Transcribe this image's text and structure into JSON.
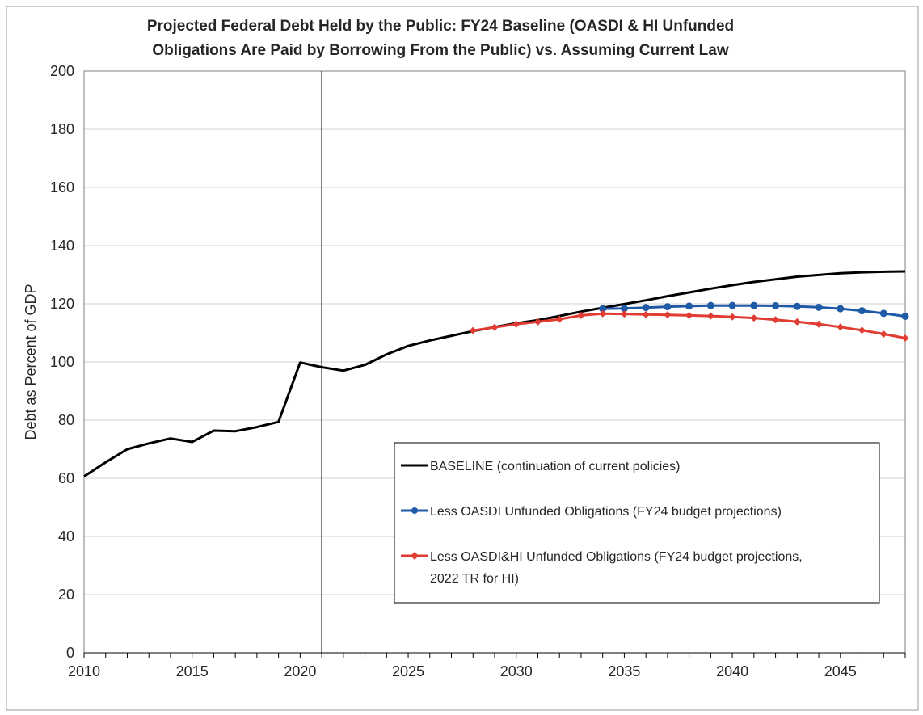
{
  "chart_data": {
    "type": "line",
    "title_lines": [
      "Projected Federal Debt Held by the Public: FY24 Baseline (OASDI & HI Unfunded",
      "Obligations Are Paid by Borrowing From the Public) vs. Assuming Current Law"
    ],
    "ylabel": "Debt as Percent of GDP",
    "xlabel": "",
    "xlim": [
      2010,
      2048
    ],
    "ylim": [
      0,
      200
    ],
    "x_ticks": [
      2010,
      2015,
      2020,
      2025,
      2030,
      2035,
      2040,
      2045
    ],
    "y_ticks": [
      0,
      20,
      40,
      60,
      80,
      100,
      120,
      140,
      160,
      180,
      200
    ],
    "horizontal_grid": true,
    "vertical_marker_x": 2021,
    "legend_position": "lower-right inside plot",
    "series": [
      {
        "name": "BASELINE (continuation of current policies)",
        "color": "#000000",
        "marker": "none",
        "x": [
          2010,
          2011,
          2012,
          2013,
          2014,
          2015,
          2016,
          2017,
          2018,
          2019,
          2020,
          2021,
          2022,
          2023,
          2024,
          2025,
          2026,
          2027,
          2028,
          2029,
          2030,
          2031,
          2032,
          2033,
          2034,
          2035,
          2036,
          2037,
          2038,
          2039,
          2040,
          2041,
          2042,
          2043,
          2044,
          2045,
          2046,
          2047,
          2048
        ],
        "y": [
          60.6,
          65.5,
          70.0,
          72.0,
          73.7,
          72.5,
          76.4,
          76.2,
          77.6,
          79.4,
          99.8,
          98.2,
          97.0,
          99.0,
          102.6,
          105.5,
          107.4,
          109.0,
          110.6,
          112.0,
          113.3,
          114.4,
          115.8,
          117.3,
          118.6,
          119.9,
          121.2,
          122.6,
          123.9,
          125.2,
          126.4,
          127.5,
          128.4,
          129.3,
          129.9,
          130.5,
          130.8,
          131.0,
          131.1
        ]
      },
      {
        "name": "Less OASDI Unfunded Obligations (FY24 budget projections)",
        "color": "#1F5AA6",
        "marker": "circle",
        "x": [
          2034,
          2035,
          2036,
          2037,
          2038,
          2039,
          2040,
          2041,
          2042,
          2043,
          2044,
          2045,
          2046,
          2047,
          2048
        ],
        "y": [
          118.3,
          118.4,
          118.7,
          119.0,
          119.2,
          119.4,
          119.4,
          119.4,
          119.3,
          119.1,
          118.8,
          118.3,
          117.6,
          116.7,
          115.7
        ]
      },
      {
        "name_lines": [
          "Less OASDI&HI Unfunded Obligations (FY24 budget projections,",
          "2022 TR for HI)"
        ],
        "color": "#E03C31",
        "marker": "diamond",
        "x": [
          2028,
          2029,
          2030,
          2031,
          2032,
          2033,
          2034,
          2035,
          2036,
          2037,
          2038,
          2039,
          2040,
          2041,
          2042,
          2043,
          2044,
          2045,
          2046,
          2047,
          2048
        ],
        "y": [
          110.8,
          111.9,
          113.0,
          113.8,
          114.7,
          116.0,
          116.6,
          116.5,
          116.3,
          116.2,
          116.0,
          115.8,
          115.5,
          115.1,
          114.5,
          113.8,
          113.0,
          112.0,
          110.9,
          109.6,
          108.2
        ]
      }
    ]
  }
}
